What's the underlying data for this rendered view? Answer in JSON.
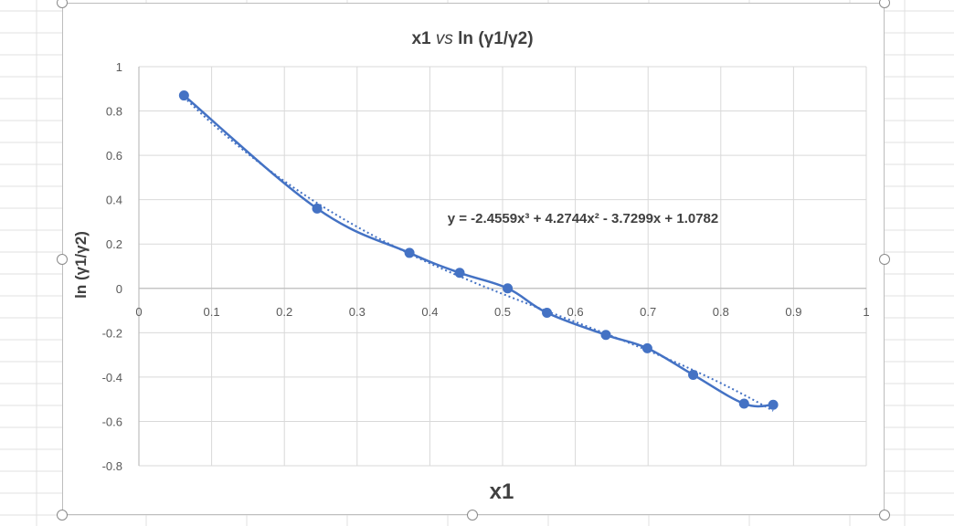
{
  "colors": {
    "series": "#4472C4",
    "gridline": "#d9d9d9",
    "axis": "#bfbfbf",
    "text": "#404040",
    "tick_text": "#595959",
    "sheet_grid": "#e1e1e1"
  },
  "chart_data": {
    "type": "scatter",
    "title": {
      "prefix": "x1 ",
      "italic": "vs",
      "suffix": " ln (γ1/γ2)"
    },
    "xlabel": "x1",
    "ylabel": "ln (γ1/γ2)",
    "xlim": [
      0,
      1
    ],
    "ylim": [
      -0.8,
      1
    ],
    "x_ticks": [
      0,
      0.1,
      0.2,
      0.3,
      0.4,
      0.5,
      0.6,
      0.7,
      0.8,
      0.9,
      1
    ],
    "y_ticks": [
      -0.8,
      -0.6,
      -0.4,
      -0.2,
      0,
      0.2,
      0.4,
      0.6,
      0.8,
      1
    ],
    "x_tick_labels": [
      "0",
      "0.1",
      "0.2",
      "0.3",
      "0.4",
      "0.5",
      "0.6",
      "0.7",
      "0.8",
      "0.9",
      "1"
    ],
    "y_tick_labels": [
      "-0.8",
      "-0.6",
      "-0.4",
      "-0.2",
      "0",
      "0.2",
      "0.4",
      "0.6",
      "0.8",
      "1"
    ],
    "grid": true,
    "series": [
      {
        "style": "scatter-smooth-line-markers",
        "x": [
          0.062,
          0.245,
          0.372,
          0.441,
          0.507,
          0.561,
          0.642,
          0.699,
          0.762,
          0.832,
          0.872
        ],
        "y": [
          0.87,
          0.36,
          0.16,
          0.07,
          0.0,
          -0.11,
          -0.21,
          -0.27,
          -0.39,
          -0.52,
          -0.525
        ]
      }
    ],
    "trendline": {
      "type": "polynomial",
      "order": 3,
      "coefficients": [
        -2.4559,
        4.2744,
        -3.7299,
        1.0782
      ],
      "range": [
        0.062,
        0.872
      ],
      "equation_label": "y = -2.4559x³ + 4.2744x² - 3.7299x + 1.0782"
    }
  }
}
